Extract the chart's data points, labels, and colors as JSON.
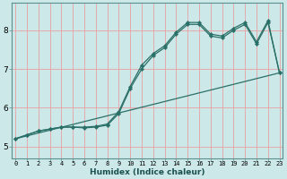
{
  "xlabel": "Humidex (Indice chaleur)",
  "bg_color": "#cce8e8",
  "grid_color_v": "#e8a0a0",
  "grid_color_h": "#e8a0a0",
  "line_color": "#2a7068",
  "x_ticks": [
    0,
    1,
    2,
    3,
    4,
    5,
    6,
    7,
    8,
    9,
    10,
    11,
    12,
    13,
    14,
    15,
    16,
    17,
    18,
    19,
    20,
    21,
    22,
    23
  ],
  "y_ticks": [
    5,
    6,
    7,
    8
  ],
  "ylim": [
    4.7,
    8.7
  ],
  "xlim": [
    -0.3,
    23.3
  ],
  "line1_y": [
    5.2,
    5.3,
    5.4,
    5.45,
    5.5,
    5.5,
    5.5,
    5.52,
    5.58,
    5.9,
    6.55,
    7.1,
    7.4,
    7.6,
    7.95,
    8.2,
    8.2,
    7.9,
    7.85,
    8.05,
    8.2,
    7.7,
    8.25,
    6.9
  ],
  "line2_y": [
    5.2,
    5.3,
    5.4,
    5.45,
    5.5,
    5.5,
    5.48,
    5.5,
    5.55,
    5.85,
    6.5,
    7.0,
    7.35,
    7.55,
    7.9,
    8.15,
    8.15,
    7.85,
    7.8,
    8.0,
    8.15,
    7.65,
    8.2,
    6.9
  ],
  "line3_x": [
    0,
    23
  ],
  "line3_y": [
    5.2,
    6.9
  ],
  "xtick_fontsize": 5.0,
  "ytick_fontsize": 6.5,
  "xlabel_fontsize": 6.5
}
